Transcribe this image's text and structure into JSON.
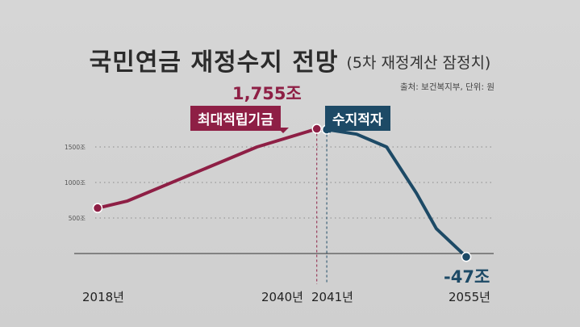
{
  "title": "국민연금 재정수지 전망",
  "subtitle": "(5차 재정계산 잠정치)",
  "source": "출처: 보건복지부, 단위: 원",
  "annotations": {
    "peak_tag": "최대적립기금",
    "deficit_tag": "수지적자",
    "peak_value": "1,755조",
    "end_value": "-47조"
  },
  "colors": {
    "surplus": "#8e1f45",
    "deficit": "#1d4a66"
  },
  "chart_data": {
    "type": "line",
    "title": "국민연금 재정수지 전망",
    "subtitle": "(5차 재정계산 잠정치)",
    "unit": "조",
    "ylim": [
      -200,
      1900
    ],
    "yticks": [
      {
        "value": 500,
        "label": "500조"
      },
      {
        "value": 1000,
        "label": "1000조"
      },
      {
        "value": 1500,
        "label": "1500조"
      }
    ],
    "xticks": [
      "2018년",
      "2040년",
      "2041년",
      "2055년"
    ],
    "grid": true,
    "series": [
      {
        "color": "#8e1f45",
        "points": [
          [
            2018,
            640
          ],
          [
            2021,
            740
          ],
          [
            2034,
            1500
          ],
          [
            2040,
            1755
          ],
          [
            2041,
            1745
          ]
        ]
      },
      {
        "color": "#1d4a66",
        "points": [
          [
            2041,
            1745
          ],
          [
            2044,
            1680
          ],
          [
            2047,
            1500
          ],
          [
            2050,
            850
          ],
          [
            2052,
            350
          ],
          [
            2055,
            -47
          ]
        ]
      }
    ],
    "markers": [
      {
        "x": 2018,
        "y": 640,
        "color": "#8e1f45"
      },
      {
        "x": 2040,
        "y": 1755,
        "color": "#8e1f45"
      },
      {
        "x": 2041,
        "y": 1745,
        "color": "#1d4a66"
      },
      {
        "x": 2055,
        "y": -47,
        "color": "#1d4a66"
      }
    ]
  }
}
